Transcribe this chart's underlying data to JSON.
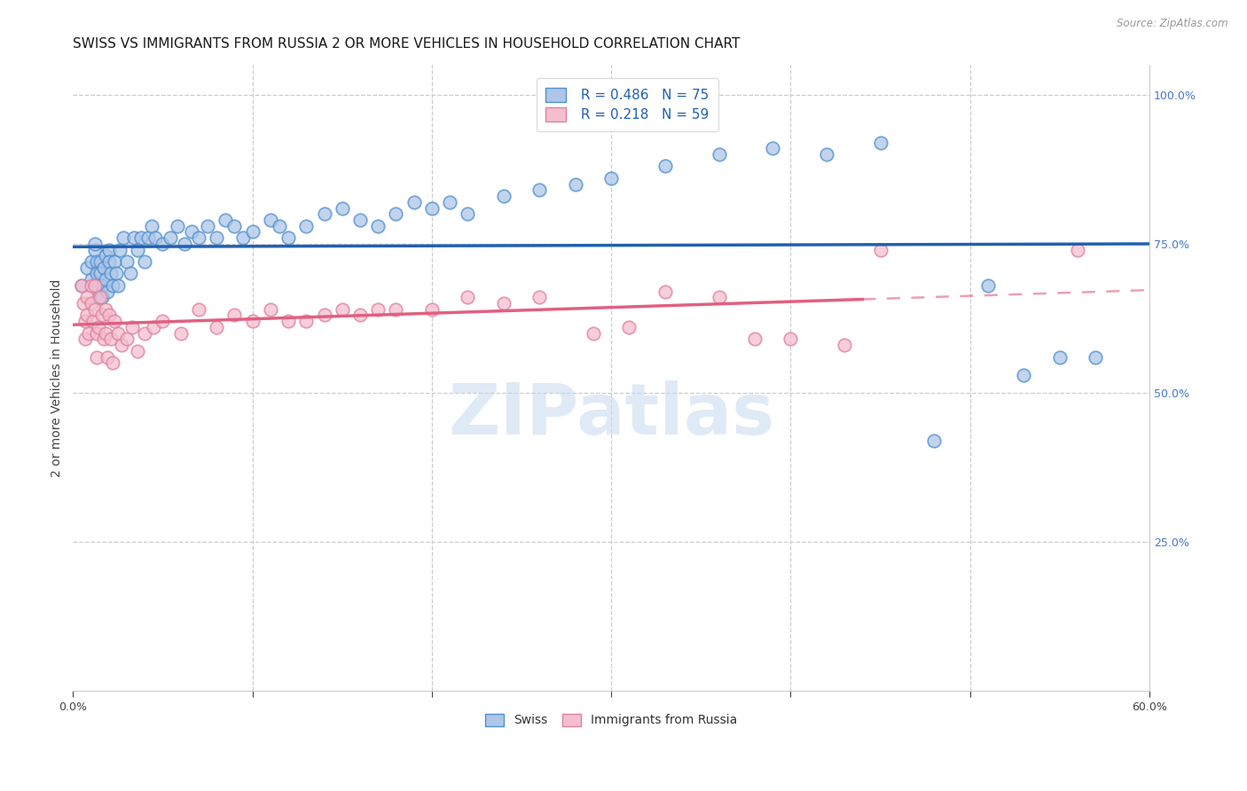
{
  "title": "SWISS VS IMMIGRANTS FROM RUSSIA 2 OR MORE VEHICLES IN HOUSEHOLD CORRELATION CHART",
  "source": "Source: ZipAtlas.com",
  "ylabel": "2 or more Vehicles in Household",
  "x_min": 0.0,
  "x_max": 0.6,
  "y_min": 0.0,
  "y_max": 1.05,
  "swiss_color": "#aec6e8",
  "russia_color": "#f5bece",
  "swiss_line_color": "#2060b0",
  "russia_line_color": "#e06080",
  "swiss_edge_color": "#5090d0",
  "russia_edge_color": "#e080a0",
  "right_axis_color": "#4477cc",
  "grid_color": "#cccccc",
  "watermark": "ZIPatlas",
  "watermark_color": "#c8daf0",
  "legend_r_swiss": "R = 0.486",
  "legend_n_swiss": "N = 75",
  "legend_r_russia": "R = 0.218",
  "legend_n_russia": "N = 59",
  "title_fontsize": 11,
  "axis_label_fontsize": 10,
  "tick_fontsize": 9,
  "legend_fontsize": 11,
  "source_fontsize": 8.5,
  "swiss_x": [
    0.005,
    0.008,
    0.01,
    0.01,
    0.012,
    0.012,
    0.013,
    0.013,
    0.014,
    0.014,
    0.015,
    0.015,
    0.016,
    0.016,
    0.017,
    0.018,
    0.018,
    0.019,
    0.02,
    0.02,
    0.021,
    0.022,
    0.023,
    0.024,
    0.025,
    0.026,
    0.028,
    0.03,
    0.032,
    0.034,
    0.036,
    0.038,
    0.04,
    0.042,
    0.044,
    0.046,
    0.05,
    0.054,
    0.058,
    0.062,
    0.066,
    0.07,
    0.075,
    0.08,
    0.085,
    0.09,
    0.095,
    0.1,
    0.11,
    0.115,
    0.12,
    0.13,
    0.14,
    0.15,
    0.16,
    0.17,
    0.18,
    0.19,
    0.2,
    0.21,
    0.22,
    0.24,
    0.26,
    0.28,
    0.3,
    0.33,
    0.36,
    0.39,
    0.42,
    0.45,
    0.48,
    0.51,
    0.53,
    0.55,
    0.57
  ],
  "swiss_y": [
    0.68,
    0.71,
    0.72,
    0.69,
    0.74,
    0.75,
    0.72,
    0.7,
    0.68,
    0.66,
    0.72,
    0.7,
    0.68,
    0.66,
    0.71,
    0.73,
    0.69,
    0.67,
    0.74,
    0.72,
    0.7,
    0.68,
    0.72,
    0.7,
    0.68,
    0.74,
    0.76,
    0.72,
    0.7,
    0.76,
    0.74,
    0.76,
    0.72,
    0.76,
    0.78,
    0.76,
    0.75,
    0.76,
    0.78,
    0.75,
    0.77,
    0.76,
    0.78,
    0.76,
    0.79,
    0.78,
    0.76,
    0.77,
    0.79,
    0.78,
    0.76,
    0.78,
    0.8,
    0.81,
    0.79,
    0.78,
    0.8,
    0.82,
    0.81,
    0.82,
    0.8,
    0.83,
    0.84,
    0.85,
    0.86,
    0.88,
    0.9,
    0.91,
    0.9,
    0.92,
    0.42,
    0.68,
    0.53,
    0.56,
    0.56
  ],
  "russia_x": [
    0.005,
    0.006,
    0.007,
    0.007,
    0.008,
    0.008,
    0.009,
    0.01,
    0.01,
    0.011,
    0.012,
    0.012,
    0.013,
    0.013,
    0.014,
    0.015,
    0.016,
    0.017,
    0.018,
    0.018,
    0.019,
    0.02,
    0.021,
    0.022,
    0.023,
    0.025,
    0.027,
    0.03,
    0.033,
    0.036,
    0.04,
    0.045,
    0.05,
    0.06,
    0.07,
    0.08,
    0.09,
    0.1,
    0.11,
    0.12,
    0.13,
    0.14,
    0.15,
    0.16,
    0.17,
    0.18,
    0.2,
    0.22,
    0.24,
    0.26,
    0.29,
    0.31,
    0.33,
    0.36,
    0.38,
    0.4,
    0.43,
    0.45,
    0.56
  ],
  "russia_y": [
    0.68,
    0.65,
    0.62,
    0.59,
    0.66,
    0.63,
    0.6,
    0.68,
    0.65,
    0.62,
    0.68,
    0.64,
    0.6,
    0.56,
    0.61,
    0.66,
    0.63,
    0.59,
    0.64,
    0.6,
    0.56,
    0.63,
    0.59,
    0.55,
    0.62,
    0.6,
    0.58,
    0.59,
    0.61,
    0.57,
    0.6,
    0.61,
    0.62,
    0.6,
    0.64,
    0.61,
    0.63,
    0.62,
    0.64,
    0.62,
    0.62,
    0.63,
    0.64,
    0.63,
    0.64,
    0.64,
    0.64,
    0.66,
    0.65,
    0.66,
    0.6,
    0.61,
    0.67,
    0.66,
    0.59,
    0.59,
    0.58,
    0.74,
    0.74
  ]
}
